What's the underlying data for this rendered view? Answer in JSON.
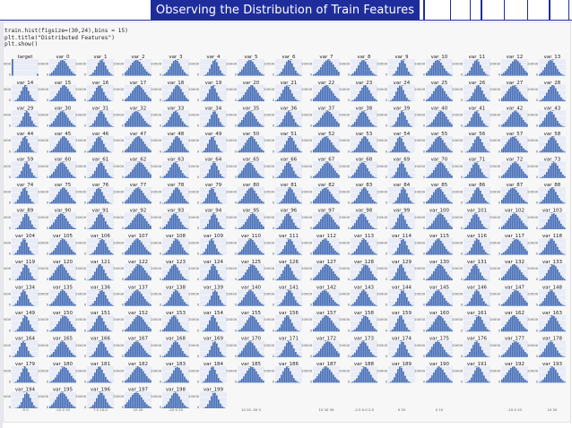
{
  "slide": {
    "title": "Observing the Distribution of Train Features"
  },
  "code": {
    "line1": "train.hist(figsize=(30,24),bins = 15)",
    "line2": "plt.title(\"Distributed Features\")",
    "line3": "plt.show()"
  },
  "colors": {
    "title_bg": "#1f2d9c",
    "bar": "#4a72b8",
    "axes_bg": "#e9ecf6"
  },
  "chart_data": {
    "type": "bar",
    "title": "",
    "rows": 14,
    "cols": 15,
    "bins": 15,
    "first_row_titles": [
      "target",
      "var_0",
      "var_1",
      "var_2",
      "var_3",
      "var_4",
      "var_5",
      "var_6",
      "var_7",
      "var_8",
      "var_9",
      "var_10",
      "var_11",
      "var_12"
    ],
    "panel_title_prefix": "var_",
    "panel_count": 201,
    "target": {
      "categories": [
        "0",
        "1"
      ],
      "values": [
        179902,
        20098
      ]
    },
    "ylim": [
      0,
      30000
    ],
    "yticks": [
      "0",
      "20000"
    ],
    "bottom_xticks": [
      "-5 0",
      "-10 0 10",
      "7.5 10.0",
      "10 20",
      "-25 0 25",
      "",
      "10 20 -50 0",
      "",
      "10 20 30",
      "-2.5 0.0 2.5",
      "0 25",
      "0 10",
      "",
      "-10 0 10",
      "10 20"
    ]
  }
}
